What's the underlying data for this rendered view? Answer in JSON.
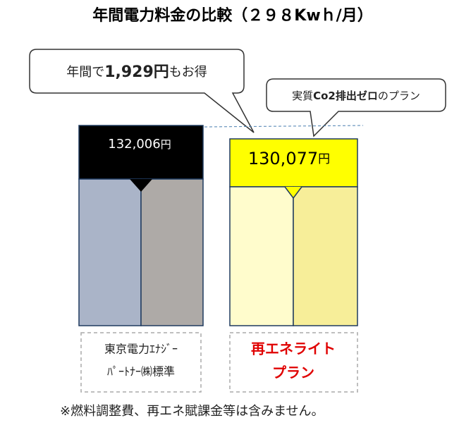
{
  "header": {
    "title": "年間電力料金の比較（２９８Kwｈ/月）"
  },
  "callouts": [
    {
      "parts": [
        "年間で",
        "1,929円",
        "もお得"
      ]
    },
    {
      "parts": [
        "実質",
        "Co2排出ゼロ",
        "のプラン"
      ]
    }
  ],
  "plans": [
    {
      "price": "132,006",
      "unit": "円",
      "label": [
        "東京電力ｴﾅｼﾞｰ",
        "ﾊﾟｰﾄﾅｰ㈱標準"
      ]
    },
    {
      "price": "130,077",
      "unit": "円",
      "label": [
        "再エネライト",
        "プラン"
      ]
    }
  ],
  "footnote": "※燃料調整費、再エネ賦課金等は含みません。"
}
